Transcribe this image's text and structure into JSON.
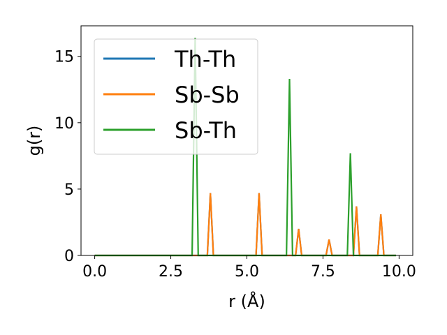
{
  "chart_data": {
    "type": "line",
    "title": "",
    "xlabel": "r (Å)",
    "ylabel": "g(r)",
    "xlim": [
      -0.45,
      10.45
    ],
    "ylim": [
      0,
      17.3
    ],
    "xticks": [
      0.0,
      2.5,
      5.0,
      7.5,
      10.0
    ],
    "xtick_labels": [
      "0.0",
      "2.5",
      "5.0",
      "7.5",
      "10.0"
    ],
    "yticks": [
      0,
      5,
      10,
      15
    ],
    "ytick_labels": [
      "0",
      "5",
      "10",
      "15"
    ],
    "grid": false,
    "legend_position": "top-left",
    "series": [
      {
        "name": "Th-Th",
        "color": "#1f77b4",
        "x": [
          0.0,
          3.7,
          3.8,
          3.9,
          5.3,
          5.4,
          5.5,
          6.6,
          6.7,
          6.8,
          7.6,
          7.7,
          7.8,
          8.5,
          8.6,
          8.7,
          9.3,
          9.4,
          9.5,
          9.9
        ],
        "y": [
          0,
          0,
          4.7,
          0,
          0,
          4.7,
          0,
          0,
          2.0,
          0,
          0,
          1.2,
          0,
          0,
          3.7,
          0,
          0,
          3.1,
          0,
          0
        ]
      },
      {
        "name": "Sb-Sb",
        "color": "#ff7f0e",
        "x": [
          0.0,
          3.7,
          3.8,
          3.9,
          5.3,
          5.4,
          5.5,
          6.6,
          6.7,
          6.8,
          7.6,
          7.7,
          7.8,
          8.5,
          8.6,
          8.7,
          9.3,
          9.4,
          9.5,
          9.9
        ],
        "y": [
          0,
          0,
          4.7,
          0,
          0,
          4.7,
          0,
          0,
          2.0,
          0,
          0,
          1.2,
          0,
          0,
          3.7,
          0,
          0,
          3.1,
          0,
          0
        ]
      },
      {
        "name": "Sb-Th",
        "color": "#2ca02c",
        "x": [
          0.0,
          3.2,
          3.3,
          3.4,
          6.3,
          6.4,
          6.5,
          8.3,
          8.4,
          8.5,
          9.9
        ],
        "y": [
          0,
          0,
          16.4,
          0,
          0,
          13.3,
          0,
          0,
          7.7,
          0,
          0
        ]
      }
    ]
  }
}
